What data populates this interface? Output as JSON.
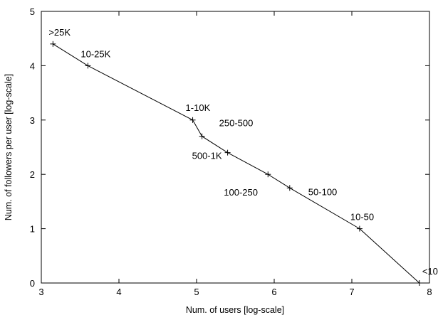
{
  "chart_data": {
    "type": "line",
    "title": "",
    "xlabel": "Num. of users [log-scale]",
    "ylabel": "Num. of followers per user [log-scale]",
    "xlim": [
      3,
      8
    ],
    "ylim": [
      0,
      5
    ],
    "xticks": [
      3,
      4,
      5,
      6,
      7,
      8
    ],
    "yticks": [
      0,
      1,
      2,
      3,
      4,
      5
    ],
    "grid": false,
    "legend": "none",
    "series": [
      {
        "x": [
          3.15,
          3.6,
          4.95,
          5.07,
          5.4,
          5.92,
          6.2,
          7.1,
          7.87
        ],
        "y": [
          4.4,
          4.0,
          3.0,
          2.7,
          2.4,
          2.0,
          1.75,
          1.0,
          0.0
        ],
        "labels": [
          ">25K",
          "10-25K",
          "1-10K",
          "250-500",
          "500-1K",
          "100-250",
          "50-100",
          "10-50",
          "<10"
        ]
      }
    ],
    "line_color": "#000000"
  }
}
